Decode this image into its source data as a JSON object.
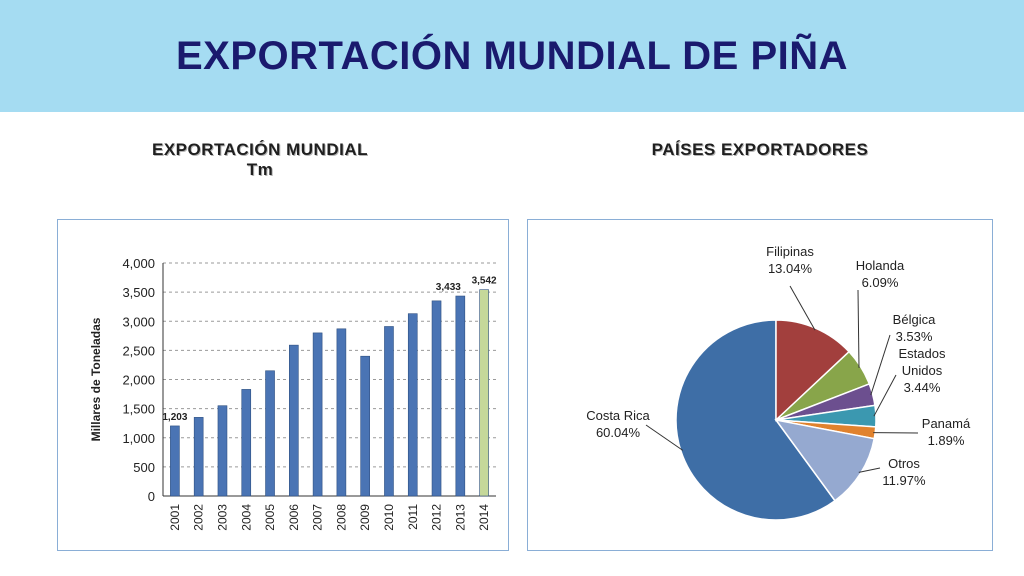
{
  "title": "EXPORTACIÓN MUNDIAL DE PIÑA",
  "left_heading": [
    "EXPORTACIÓN MUNDIAL",
    "Tm"
  ],
  "right_heading": "PAÍSES EXPORTADORES",
  "chart_data": [
    {
      "type": "bar",
      "ylabel": "Millares de Toneladas",
      "ylim": [
        0,
        4000
      ],
      "yticks": [
        "0",
        "500",
        "1,000",
        "1,500",
        "2,000",
        "2,500",
        "3,000",
        "3,500",
        "4,000"
      ],
      "grid": true,
      "categories": [
        "2001",
        "2002",
        "2003",
        "2004",
        "2005",
        "2006",
        "2007",
        "2008",
        "2009",
        "2010",
        "2011",
        "2012",
        "2013",
        "2014"
      ],
      "values": [
        1203,
        1350,
        1550,
        1830,
        2150,
        2590,
        2800,
        2870,
        2400,
        2910,
        3130,
        3350,
        3433,
        3542
      ],
      "data_labels": {
        "0": "1,203",
        "12": "3,433",
        "13": "3,542"
      },
      "colors": {
        "bar": "#4a74b4",
        "highlight": "#c5d89a"
      },
      "highlight_index": 13
    },
    {
      "type": "pie",
      "slices": [
        {
          "name": "Costa Rica",
          "value": 60.04,
          "label": "60.04%",
          "color": "#3e6ea6"
        },
        {
          "name": "Filipinas",
          "value": 13.04,
          "label": "13.04%",
          "color": "#a23f3d"
        },
        {
          "name": "Holanda",
          "value": 6.09,
          "label": "6.09%",
          "color": "#88a54a"
        },
        {
          "name": "Bélgica",
          "value": 3.53,
          "label": "3.53%",
          "color": "#6c4f8f"
        },
        {
          "name": "Estados Unidos",
          "value": 3.44,
          "label": "3.44%",
          "color": "#3b98b0"
        },
        {
          "name": "Panamá",
          "value": 1.89,
          "label": "1.89%",
          "color": "#e0822e"
        },
        {
          "name": "Otros",
          "value": 11.97,
          "label": "11.97%",
          "color": "#95a9d0"
        }
      ]
    }
  ]
}
